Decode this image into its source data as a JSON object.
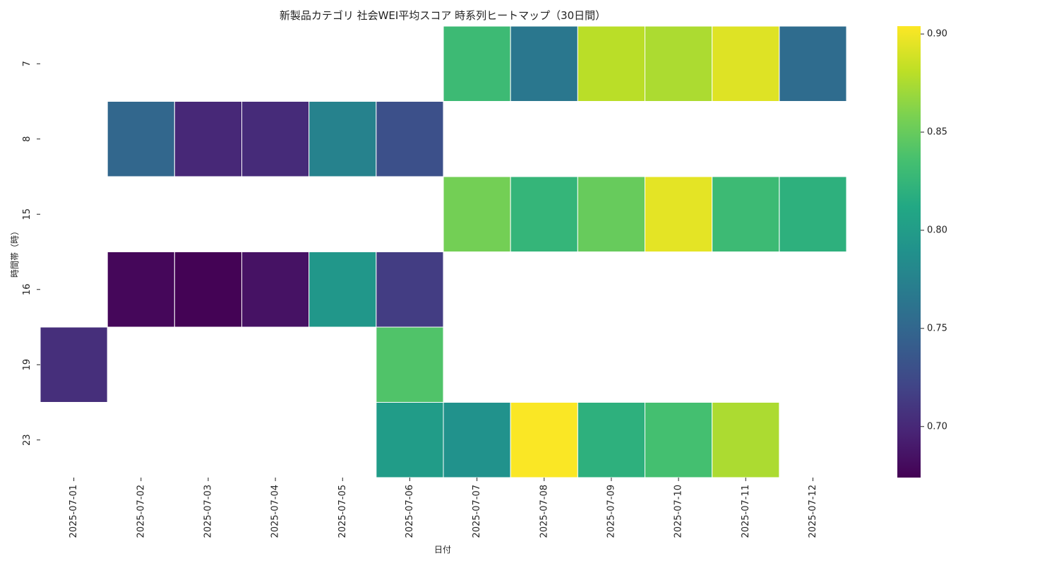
{
  "chart_data": {
    "type": "heatmap",
    "title": "新製品カテゴリ 社会WEI平均スコア 時系列ヒートマップ（30日間）",
    "xlabel": "日付",
    "ylabel": "時間帯（時）",
    "x": [
      "2025-07-01",
      "2025-07-02",
      "2025-07-03",
      "2025-07-04",
      "2025-07-05",
      "2025-07-06",
      "2025-07-07",
      "2025-07-08",
      "2025-07-09",
      "2025-07-10",
      "2025-07-11",
      "2025-07-12"
    ],
    "y": [
      "7",
      "8",
      "15",
      "16",
      "19",
      "23"
    ],
    "values": [
      [
        null,
        null,
        null,
        null,
        null,
        null,
        0.83,
        0.765,
        0.88,
        0.875,
        0.893,
        0.755
      ],
      [
        null,
        0.75,
        0.7,
        0.702,
        0.775,
        0.73,
        null,
        null,
        null,
        null,
        null,
        null
      ],
      [
        null,
        null,
        null,
        null,
        null,
        null,
        0.855,
        0.825,
        0.85,
        0.895,
        0.83,
        0.82
      ],
      [
        null,
        0.678,
        0.675,
        0.685,
        0.795,
        0.715,
        null,
        null,
        null,
        null,
        null,
        null
      ],
      [
        0.705,
        null,
        null,
        null,
        null,
        0.84,
        null,
        null,
        null,
        null,
        null,
        null
      ],
      [
        null,
        null,
        null,
        null,
        null,
        0.8,
        0.79,
        0.903,
        0.82,
        0.835,
        0.875,
        null
      ]
    ],
    "colorscale": "viridis",
    "zlim": [
      0.674,
      0.904
    ],
    "colorbar_ticks": [
      "0.70",
      "0.75",
      "0.80",
      "0.85",
      "0.90"
    ],
    "grid": false
  }
}
